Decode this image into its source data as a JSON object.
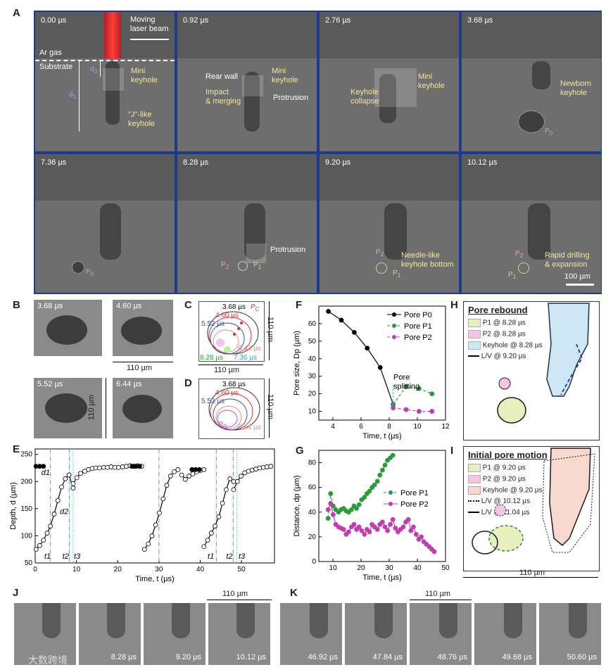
{
  "panels": {
    "A": "A",
    "B": "B",
    "C": "C",
    "D": "D",
    "E": "E",
    "F": "F",
    "G": "G",
    "H": "H",
    "I": "I",
    "J": "J",
    "K": "K"
  },
  "panelA": {
    "frames": [
      {
        "time": "0.00 µs"
      },
      {
        "time": "0.92 µs"
      },
      {
        "time": "2.76 µs"
      },
      {
        "time": "3.68 µs"
      },
      {
        "time": "7.36 µs"
      },
      {
        "time": "8.28 µs"
      },
      {
        "time": "9.20 µs"
      },
      {
        "time": "10.12 µs"
      }
    ],
    "labels": {
      "moving_laser": "Moving\nlaser beam",
      "ar_gas": "Ar gas",
      "substrate": "Substrate",
      "d0": "d",
      "d0_sub": "0",
      "d1": "d",
      "d1_sub": "1",
      "mini_keyhole": "Mini\nkeyhole",
      "j_keyhole": "\"J\"-like\nkeyhole",
      "rear_wall": "Rear wall",
      "impact_merging": "Impact\n& merging",
      "protrusion": "Protrusion",
      "keyhole_collapse": "Keyhole\ncollapse",
      "newborn_keyhole": "Newborn\nkeyhole",
      "p0": "P",
      "p0_sub": "0",
      "p1": "P",
      "p1_sub": "1",
      "p2": "P",
      "p2_sub": "2",
      "needle_like": "Needle-like\nkeyhole bottom",
      "rapid_drilling": "Rapid drilling\n& expansion",
      "scale": "100 µm"
    }
  },
  "panelB": {
    "times": [
      "3.68 µs",
      "4.60 µs",
      "5.52 µs",
      "6.44 µs"
    ],
    "scale_h": "110 µm",
    "scale_v": "110 µm"
  },
  "panelC": {
    "t1": "3.68 µs",
    "t2": "4.60 µs",
    "t3": "5.52 µs",
    "t4": "6.44 µs",
    "t5": "8.28 µs",
    "t6": "7.36 µs",
    "pc": "P",
    "pc_sub": "C",
    "scale_h": "110 µm",
    "scale_v": "110 µm"
  },
  "panelD": {
    "t1": "3.68 µs",
    "t2": "4.60 µs",
    "t3": "5.52 µs",
    "t4": "6.44 µs",
    "pd": "P",
    "pd_sub": "D",
    "scale_v": "110 µm"
  },
  "panelH": {
    "title": "Pore rebound",
    "legend": [
      "P1 @ 8.28 µs",
      "P2 @ 8.28 µs",
      "Keyhole @ 8.28 µs",
      "L/V @ 9.20 µs"
    ],
    "colors": [
      "#e8efbf",
      "#f2c7e6",
      "#cfe6f7",
      "#000000"
    ]
  },
  "panelI": {
    "title": "Initial pore motion",
    "legend": [
      "P1 @ 9.20 µs",
      "P2 @ 9.20 µs",
      "Keyhole @ 9.20 µs",
      "L/V @ 10.12 µs",
      "L/V @ 11.04 µs"
    ],
    "colors": [
      "#e8efbf",
      "#f2c7e6",
      "#f9d9cf",
      "#000000",
      "#000000"
    ],
    "scale": "110 µm"
  },
  "panelJ": {
    "times": [
      "",
      "8.28 µs",
      "9.20 µs",
      "10.12 µs"
    ],
    "scale": "110 µm"
  },
  "panelK": {
    "times": [
      "46.92 µs",
      "47.84 µs",
      "48.76 µs",
      "49.68 µs",
      "50.60 µs"
    ],
    "scale": "110 µm"
  },
  "watermark": "大数跨境",
  "chart_data": [
    {
      "id": "E",
      "type": "line",
      "xlabel": "Time, t (µs)",
      "ylabel": "Depth, d (µm)",
      "xlim": [
        0,
        58
      ],
      "ylim": [
        50,
        260
      ],
      "xticks": [
        0,
        10,
        20,
        30,
        40,
        50
      ],
      "yticks": [
        50,
        100,
        150,
        200,
        250
      ],
      "annotations": {
        "d1": "d1",
        "d2": "d2",
        "t1": "t1",
        "t2": "t2",
        "t3": "t3"
      },
      "series": [
        {
          "name": "cycle1_rise",
          "x": [
            0.2,
            1.1,
            2.0,
            2.9,
            3.7,
            4.6,
            5.5,
            6.4,
            7.3,
            8.2
          ],
          "y": [
            75,
            82,
            92,
            105,
            118,
            140,
            165,
            190,
            205,
            212
          ]
        },
        {
          "name": "cycle1_dip",
          "x": [
            8.2,
            9.2
          ],
          "y": [
            212,
            188
          ]
        },
        {
          "name": "cycle1_plateau",
          "x": [
            9.2,
            10.1,
            11.0,
            12.0,
            12.9,
            13.8,
            14.7,
            15.6,
            16.6,
            17.5,
            18.4,
            19.3,
            20.2,
            21.2,
            22.1,
            23.0,
            23.9,
            24.8,
            25.8
          ],
          "y": [
            196,
            207,
            215,
            219,
            222,
            224,
            225,
            225,
            226,
            226,
            227,
            226,
            226,
            227,
            228,
            229,
            228,
            229,
            228
          ]
        },
        {
          "name": "cycle2_rise",
          "x": [
            26.5,
            27.4,
            28.3,
            29.2,
            30.1,
            31.0,
            31.9,
            32.8,
            33.7,
            34.6
          ],
          "y": [
            75,
            85,
            100,
            120,
            142,
            168,
            193,
            210,
            218,
            222
          ]
        },
        {
          "name": "cycle2_plateau",
          "x": [
            35.5,
            36.4,
            37.3,
            38.2,
            39.1,
            40.0,
            40.9
          ],
          "y": [
            212,
            204,
            210,
            214,
            218,
            220,
            222
          ]
        },
        {
          "name": "cycle3_rise",
          "x": [
            40.9,
            41.8,
            42.7,
            43.6,
            44.5,
            45.4,
            46.3,
            47.2,
            48.1
          ],
          "y": [
            80,
            92,
            105,
            118,
            135,
            160,
            185,
            205,
            200
          ]
        },
        {
          "name": "cycle3_plateau",
          "x": [
            48.1,
            49.0,
            49.9,
            50.8,
            51.7,
            52.6,
            53.5,
            54.4,
            55.3,
            56.2,
            57.1
          ],
          "y": [
            185,
            200,
            210,
            216,
            219,
            221,
            223,
            225,
            226,
            227,
            228
          ]
        },
        {
          "name": "d1_start",
          "x": [
            0.2,
            1.1,
            2.0
          ],
          "y": [
            228,
            228,
            228
          ]
        },
        {
          "name": "d1_mid",
          "x": [
            23.5,
            24.4,
            25.3
          ],
          "y": [
            228,
            228,
            228
          ]
        },
        {
          "name": "d1_mid2",
          "x": [
            38.0,
            38.9,
            39.8
          ],
          "y": [
            222,
            222,
            222
          ]
        }
      ],
      "vlines_dashdot": [
        3.7,
        8.3,
        30.0,
        43.9,
        48.0
      ],
      "vlines_dotted": [
        9.2,
        48.9
      ]
    },
    {
      "id": "F",
      "type": "line",
      "xlabel": "Time, t (µs)",
      "ylabel": "Pore size, Dp (µm)",
      "xlim": [
        3,
        12
      ],
      "ylim": [
        5,
        70
      ],
      "xticks": [
        4,
        6,
        8,
        10,
        12
      ],
      "yticks": [
        10,
        20,
        30,
        40,
        50,
        60
      ],
      "annotation": "Pore\nsplitting",
      "series": [
        {
          "name": "Pore P0",
          "x": [
            3.68,
            4.6,
            5.52,
            6.44,
            7.36,
            8.28
          ],
          "y": [
            67,
            62,
            55,
            46,
            35,
            14
          ]
        },
        {
          "name": "Pore P1",
          "x": [
            8.28,
            9.2,
            10.12,
            11.04
          ],
          "y": [
            14,
            24,
            23,
            20
          ]
        },
        {
          "name": "Pore P2",
          "x": [
            8.28,
            9.2,
            10.12,
            11.04
          ],
          "y": [
            12,
            11,
            10,
            10
          ]
        }
      ]
    },
    {
      "id": "G",
      "type": "line",
      "xlabel": "Time, t (µs)",
      "ylabel": "Distance, dp (µm)",
      "xlim": [
        5,
        50
      ],
      "ylim": [
        0,
        90
      ],
      "xticks": [
        10,
        20,
        30,
        40,
        50
      ],
      "yticks": [
        0,
        20,
        40,
        60,
        80
      ],
      "series": [
        {
          "name": "Pore P1",
          "x": [
            8.3,
            9.2,
            10.1,
            11.0,
            12.0,
            12.9,
            13.8,
            14.7,
            15.6,
            16.6,
            17.5,
            18.4,
            19.3,
            20.2,
            21.2,
            22.1,
            23.0,
            23.9,
            24.8,
            25.8,
            26.7,
            27.6,
            28.5,
            29.4,
            30.4,
            31.3
          ],
          "y": [
            35,
            55,
            45,
            42,
            40,
            42,
            43,
            41,
            40,
            42,
            45,
            43,
            46,
            50,
            52,
            55,
            57,
            60,
            62,
            65,
            70,
            74,
            78,
            82,
            84,
            86
          ]
        },
        {
          "name": "Pore P2",
          "x": [
            8.3,
            9.2,
            10.1,
            11.0,
            12.0,
            12.9,
            13.8,
            14.7,
            15.6,
            16.6,
            17.5,
            18.4,
            19.3,
            20.2,
            21.2,
            22.1,
            23.0,
            23.9,
            24.8,
            25.8,
            26.7,
            27.6,
            28.5,
            29.4,
            30.4,
            31.3,
            32.2,
            33.1,
            34.0,
            35.0,
            35.9,
            36.8,
            37.7,
            38.6,
            39.6,
            40.5,
            41.4,
            42.3,
            43.2,
            44.2,
            45.1,
            46.0
          ],
          "y": [
            42,
            47,
            38,
            30,
            28,
            27,
            26,
            22,
            24,
            28,
            30,
            26,
            28,
            25,
            22,
            26,
            24,
            30,
            28,
            26,
            30,
            32,
            28,
            25,
            30,
            34,
            27,
            24,
            26,
            28,
            32,
            34,
            25,
            28,
            22,
            18,
            20,
            16,
            14,
            12,
            10,
            8
          ]
        }
      ]
    }
  ]
}
